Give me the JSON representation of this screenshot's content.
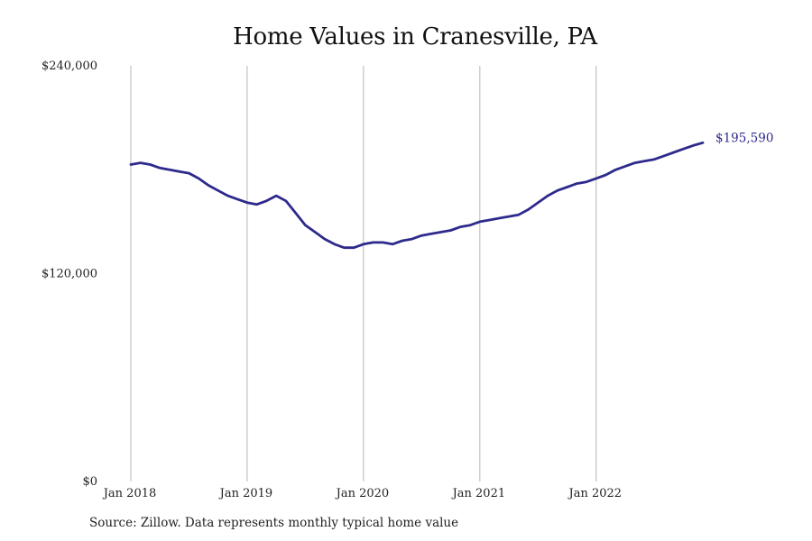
{
  "chart_data": {
    "type": "line",
    "title": "Home Values in Cranesville, PA",
    "xlabel": "",
    "ylabel": "",
    "ylim": [
      0,
      240000
    ],
    "y_ticks": [
      {
        "value": 0,
        "label": "$0"
      },
      {
        "value": 120000,
        "label": "$120,000"
      },
      {
        "value": 240000,
        "label": "$240,000"
      }
    ],
    "x_ticks": [
      {
        "value": "2018-01",
        "label": "Jan 2018"
      },
      {
        "value": "2019-01",
        "label": "Jan 2019"
      },
      {
        "value": "2020-01",
        "label": "Jan 2020"
      },
      {
        "value": "2021-01",
        "label": "Jan 2021"
      },
      {
        "value": "2022-01",
        "label": "Jan 2022"
      }
    ],
    "grid": "vertical",
    "line_color": "#2e2a8c",
    "end_label": "$195,590",
    "series": [
      {
        "x": [
          "2018-01",
          "2018-02",
          "2018-03",
          "2018-04",
          "2018-05",
          "2018-06",
          "2018-07",
          "2018-08",
          "2018-09",
          "2018-10",
          "2018-11",
          "2018-12",
          "2019-01",
          "2019-02",
          "2019-03",
          "2019-04",
          "2019-05",
          "2019-06",
          "2019-07",
          "2019-08",
          "2019-09",
          "2019-10",
          "2019-11",
          "2019-12",
          "2020-01",
          "2020-02",
          "2020-03",
          "2020-04",
          "2020-05",
          "2020-06",
          "2020-07",
          "2020-08",
          "2020-09",
          "2020-10",
          "2020-11",
          "2020-12",
          "2021-01",
          "2021-02",
          "2021-03",
          "2021-04",
          "2021-05",
          "2021-06",
          "2021-07",
          "2021-08",
          "2021-09",
          "2021-10",
          "2021-11",
          "2021-12",
          "2022-01",
          "2022-02",
          "2022-03",
          "2022-04",
          "2022-05",
          "2022-06",
          "2022-07",
          "2022-08",
          "2022-09",
          "2022-10",
          "2022-11",
          "2022-12"
        ],
        "values": [
          183000,
          184000,
          183000,
          181000,
          180000,
          179000,
          178000,
          175000,
          171000,
          168000,
          165000,
          163000,
          161000,
          160000,
          162000,
          165000,
          162000,
          155000,
          148000,
          144000,
          140000,
          137000,
          135000,
          135000,
          137000,
          138000,
          138000,
          137000,
          139000,
          140000,
          142000,
          143000,
          144000,
          145000,
          147000,
          148000,
          150000,
          151000,
          152000,
          153000,
          154000,
          157000,
          161000,
          165000,
          168000,
          170000,
          172000,
          173000,
          175000,
          177000,
          180000,
          182000,
          184000,
          185000,
          186000,
          188000,
          190000,
          192000,
          194000,
          195590
        ]
      }
    ]
  },
  "source": "Source: Zillow. Data represents monthly typical home value"
}
